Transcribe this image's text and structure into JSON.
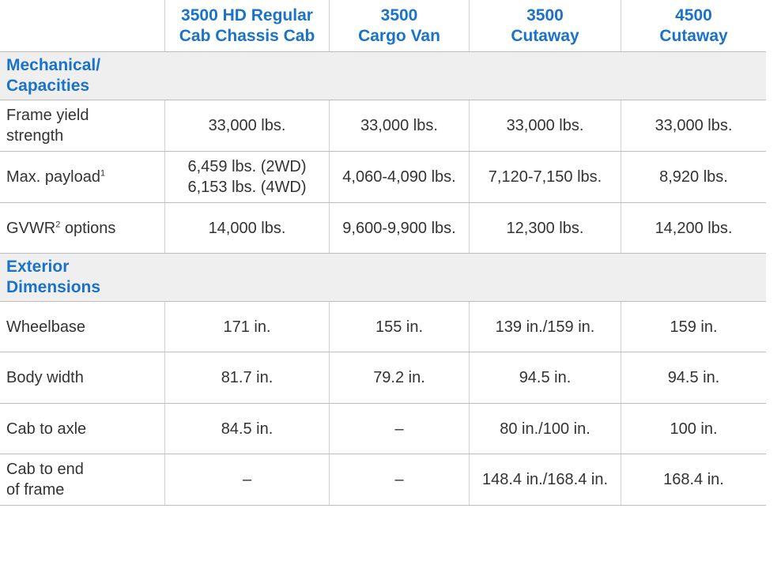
{
  "table": {
    "columns": [
      "3500 HD Regular\nCab Chassis Cab",
      "3500\nCargo Van",
      "3500\nCutaway",
      "4500\nCutaway"
    ],
    "sections": [
      {
        "title": "Mechanical/\nCapacities",
        "rows": [
          {
            "label": "Frame yield\nstrength",
            "cells": [
              "33,000 lbs.",
              "33,000 lbs.",
              "33,000 lbs.",
              "33,000 lbs."
            ]
          },
          {
            "label": "Max. payload",
            "sup": "1",
            "cells": [
              "6,459 lbs. (2WD)\n6,153 lbs. (4WD)",
              "4,060-4,090 lbs.",
              "7,120-7,150 lbs.",
              "8,920 lbs."
            ]
          },
          {
            "label": "GVWR",
            "sup": "2",
            "label_rest": " options",
            "cells": [
              "14,000 lbs.",
              "9,600-9,900 lbs.",
              "12,300 lbs.",
              "14,200 lbs."
            ]
          }
        ]
      },
      {
        "title": "Exterior\nDimensions",
        "rows": [
          {
            "label": "Wheelbase",
            "cells": [
              "171 in.",
              "155 in.",
              "139 in./159 in.",
              "159 in."
            ]
          },
          {
            "label": "Body width",
            "cells": [
              "81.7 in.",
              "79.2 in.",
              "94.5 in.",
              "94.5 in."
            ]
          },
          {
            "label": "Cab to axle",
            "cells": [
              "84.5 in.",
              "–",
              "80 in./100 in.",
              "100 in."
            ]
          },
          {
            "label": "Cab to end\nof frame",
            "cells": [
              "–",
              "–",
              "148.4 in./168.4 in.",
              "168.4 in."
            ]
          }
        ]
      }
    ]
  }
}
